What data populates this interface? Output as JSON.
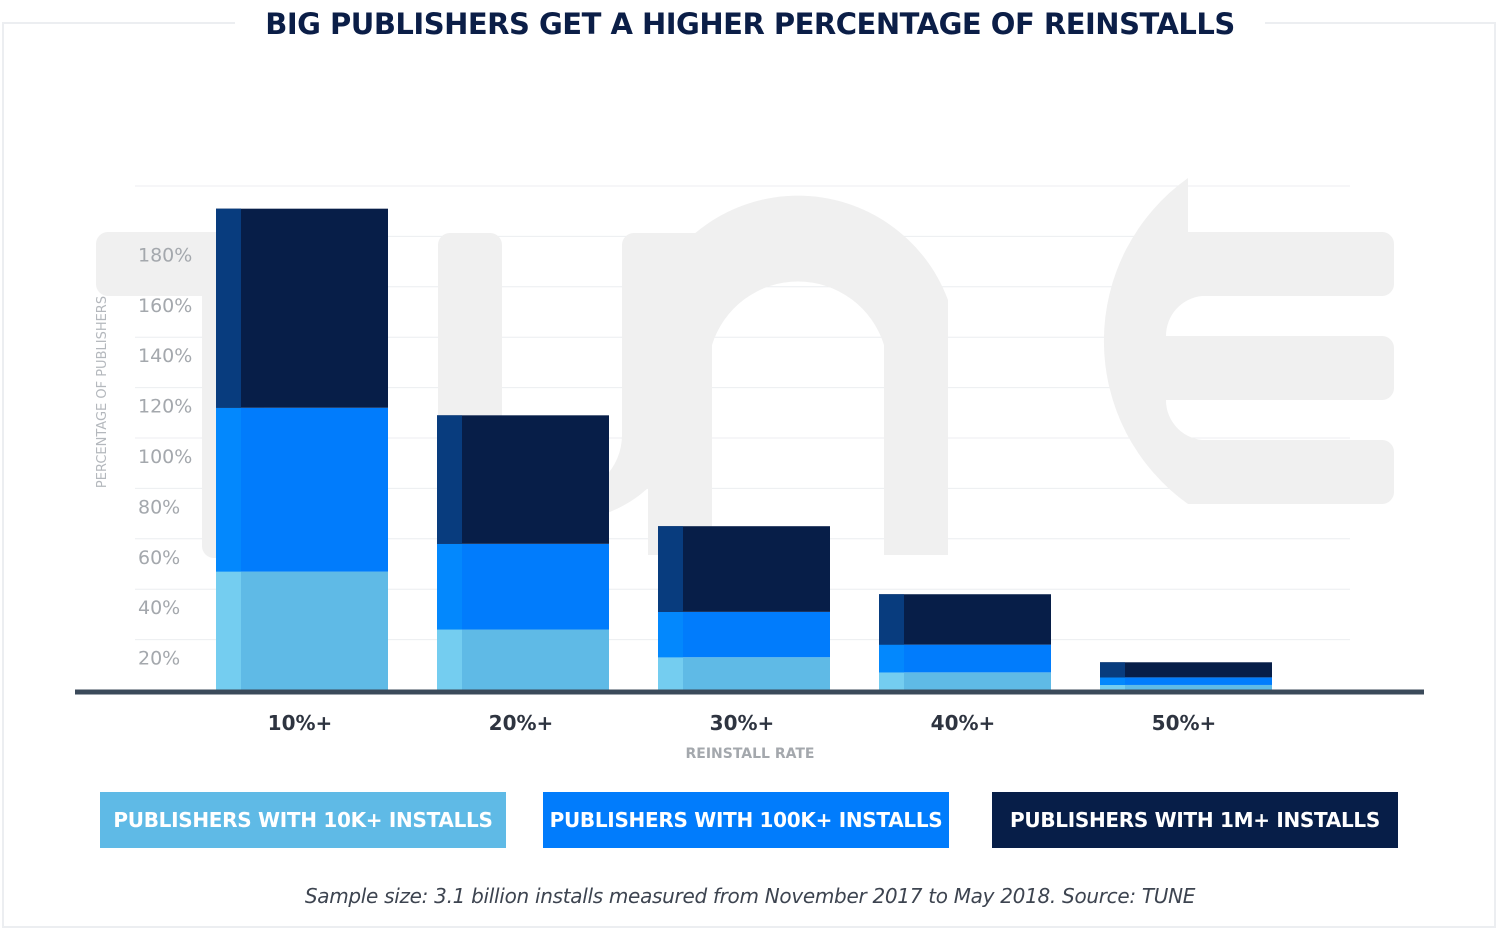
{
  "colors": {
    "s10k": "#5fbae6",
    "s10k_edge": "#74cdf0",
    "s100k": "#017cfc",
    "s100k_edge": "#0388fd",
    "s1m": "#071e48",
    "s1m_edge": "#083c7e",
    "title": "#0b1e47",
    "axis": "#3b4a5a",
    "tick": "#a4a8ad",
    "grid": "#eceef0",
    "watermark": "#f0f0f0"
  },
  "watermark": "TUNE",
  "chart_data": {
    "type": "bar",
    "stacked": true,
    "title": "BIG PUBLISHERS GET A HIGHER PERCENTAGE OF REINSTALLS",
    "xlabel": "REINSTALL RATE",
    "ylabel": "PERCENTAGE OF PUBLISHERS",
    "categories": [
      "10%+",
      "20%+",
      "30%+",
      "40%+",
      "50%+"
    ],
    "yticks": [
      "20%",
      "40%",
      "60%",
      "80%",
      "100%",
      "120%",
      "140%",
      "160%",
      "180%"
    ],
    "ylim": [
      0,
      200
    ],
    "grid": true,
    "legend_position": "bottom",
    "series": [
      {
        "name": "PUBLISHERS WITH 10K+ INSTALLS",
        "color": "#5fbae6",
        "values": [
          47,
          24,
          13,
          7,
          2
        ]
      },
      {
        "name": "PUBLISHERS WITH 100K+ INSTALLS",
        "color": "#017cfc",
        "values": [
          65,
          34,
          18,
          11,
          3
        ]
      },
      {
        "name": "PUBLISHERS WITH 1M+ INSTALLS",
        "color": "#071e48",
        "values": [
          79,
          51,
          34,
          20,
          6
        ]
      }
    ],
    "caption": "Sample size: 3.1 billion installs measured from November 2017 to May 2018. Source: TUNE"
  }
}
